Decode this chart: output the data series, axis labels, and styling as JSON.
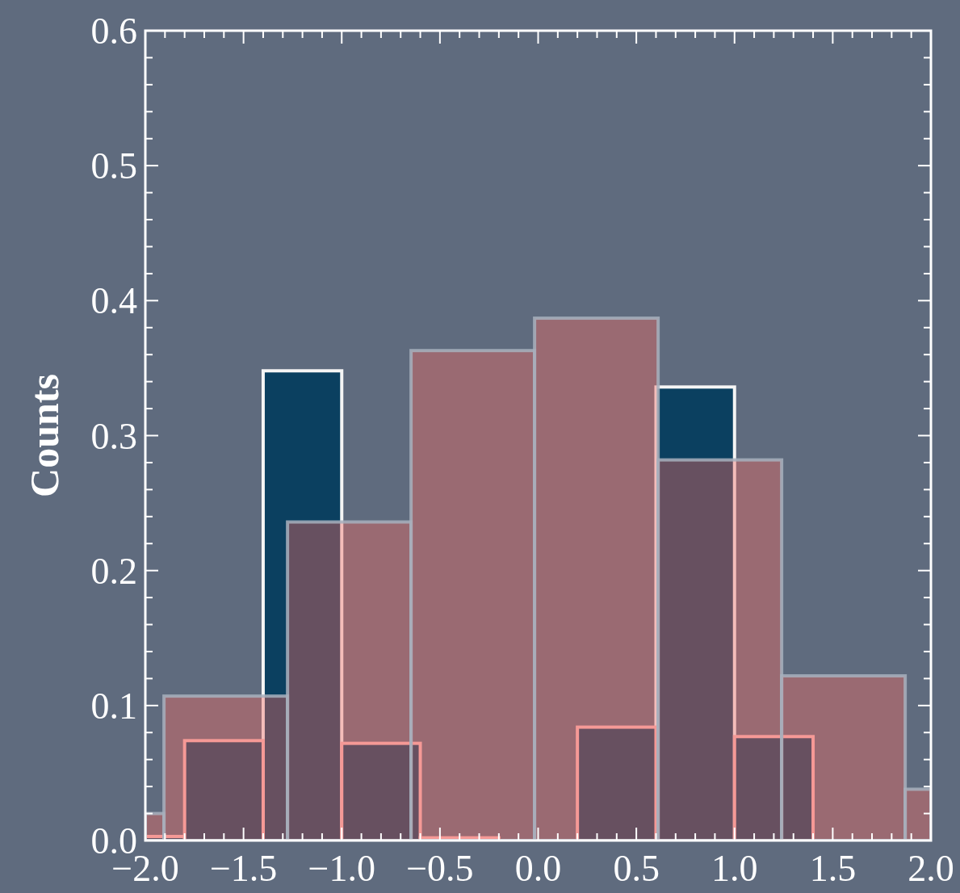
{
  "chart_data": {
    "type": "histogram",
    "ylabel": "Counts",
    "xlim": [
      -2.0,
      2.0
    ],
    "xticks": [
      {
        "value": -2.0,
        "label": "−2.0"
      },
      {
        "value": -1.5,
        "label": "−1.5"
      },
      {
        "value": -1.0,
        "label": "−1.0"
      },
      {
        "value": -0.5,
        "label": "−0.5"
      },
      {
        "value": 0.0,
        "label": "0.0"
      },
      {
        "value": 0.5,
        "label": "0.5"
      },
      {
        "value": 1.0,
        "label": "1.0"
      },
      {
        "value": 1.5,
        "label": "1.5"
      },
      {
        "value": 2.0,
        "label": "2.0"
      }
    ],
    "ylim": [
      0,
      0.6
    ],
    "yticks": [
      {
        "value": 0,
        "label": "0.0"
      },
      {
        "value": 0.1,
        "label": "0.1"
      },
      {
        "value": 0.2,
        "label": "0.2"
      },
      {
        "value": 0.3,
        "label": "0.3"
      },
      {
        "value": 0.4,
        "label": "0.4"
      },
      {
        "value": 0.5,
        "label": "0.5"
      },
      {
        "value": 0.6,
        "label": "0.6"
      }
    ],
    "grid": false,
    "bins": [
      -2.0,
      -1.8,
      -1.4,
      -1.0,
      -0.6,
      -0.2,
      0.2,
      0.6,
      1.0,
      1.4
    ],
    "series": [
      {
        "color": "#0b4060",
        "values": [
          null,
          null,
          0.348,
          null,
          null,
          null,
          null,
          0.336,
          null
        ]
      },
      {
        "color": "#0b4060",
        "values": [
          0.003,
          0.074,
          null,
          0.072,
          0.002,
          0,
          0.084,
          null,
          0.077
        ]
      },
      {
        "color": "#f26862",
        "bins": [
          -2.0,
          -1.905,
          -1.276,
          -0.647,
          -0.018,
          0.611,
          1.24,
          1.869,
          2.0
        ],
        "values": [
          0.02,
          0.107,
          0.236,
          0.363,
          0.387,
          0.282,
          0.122,
          0.038
        ]
      }
    ]
  }
}
